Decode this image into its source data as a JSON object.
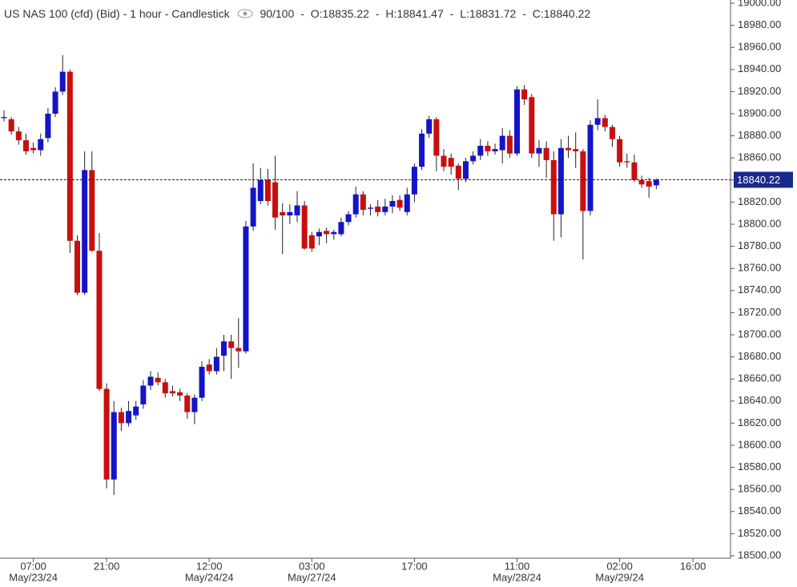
{
  "header": {
    "title": "US NAS 100 (cfd) (Bid) - 1 hour - Candlestick",
    "count": "90/100",
    "separator": "-",
    "readout_labels": [
      "O:",
      "H:",
      "L:",
      "C:"
    ]
  },
  "chart_data": {
    "type": "candlestick",
    "categories": [
      null,
      null,
      null,
      null,
      "07:00",
      null,
      null,
      null,
      null,
      null,
      null,
      null,
      null,
      null,
      "21:00",
      null,
      null,
      null,
      null,
      null,
      null,
      null,
      null,
      null,
      null,
      null,
      null,
      null,
      "12:00",
      null,
      null,
      null,
      null,
      null,
      null,
      null,
      null,
      null,
      null,
      null,
      null,
      null,
      "03:00",
      null,
      null,
      null,
      null,
      null,
      null,
      null,
      null,
      null,
      null,
      null,
      null,
      null,
      "17:00",
      null,
      null,
      null,
      null,
      null,
      null,
      null,
      null,
      null,
      null,
      null,
      null,
      null,
      "11:00",
      null,
      null,
      null,
      null,
      null,
      null,
      null,
      null,
      null,
      null,
      null,
      null,
      null,
      "02:00",
      null,
      null,
      null,
      null,
      null,
      null,
      null,
      null,
      null,
      "16:00",
      null,
      null,
      null,
      null,
      null
    ],
    "dates": [
      null,
      null,
      null,
      null,
      "May/23/24",
      null,
      null,
      null,
      null,
      null,
      null,
      null,
      null,
      null,
      null,
      null,
      null,
      null,
      null,
      null,
      null,
      null,
      null,
      null,
      null,
      null,
      null,
      null,
      "May/24/24",
      null,
      null,
      null,
      null,
      null,
      null,
      null,
      null,
      null,
      null,
      null,
      null,
      null,
      "May/27/24",
      null,
      null,
      null,
      null,
      null,
      null,
      null,
      null,
      null,
      null,
      null,
      null,
      null,
      null,
      null,
      null,
      null,
      null,
      null,
      null,
      null,
      null,
      null,
      null,
      null,
      null,
      null,
      "May/28/24",
      null,
      null,
      null,
      null,
      null,
      null,
      null,
      null,
      null,
      null,
      null,
      null,
      null,
      "May/29/24",
      null,
      null,
      null,
      null,
      null,
      null,
      null,
      null,
      null,
      null,
      null,
      null,
      null,
      null,
      null
    ],
    "open": [
      18896,
      18895,
      18884,
      18876,
      18869,
      18867,
      18878,
      18900,
      18920,
      18938,
      18785,
      18738,
      18849,
      18776,
      18651,
      18569,
      18630,
      18620,
      18627,
      18637,
      18654,
      18661,
      18657,
      18649,
      18648,
      18645,
      18630,
      18643,
      18673,
      18667,
      18681,
      18694,
      18688,
      18685,
      18798,
      18821,
      18840,
      18838,
      18811,
      18808,
      18808,
      18817,
      18790,
      18789,
      18794,
      18791,
      18791,
      18802,
      18809,
      18827,
      18814,
      18816,
      18811,
      18816,
      18822,
      18811,
      18827,
      18852,
      18882,
      18895,
      18862,
      18860,
      18853,
      18841,
      18857,
      18862,
      18871,
      18866,
      18867,
      18880,
      18864,
      18922,
      18915,
      18864,
      18869,
      18858,
      18809,
      18869,
      18868,
      18866,
      18812,
      18890,
      18896,
      18888,
      18877,
      18857,
      18856,
      18840,
      18839,
      18835.22,
      null,
      null,
      null,
      null,
      null,
      null,
      null,
      null,
      null,
      null
    ],
    "high": [
      18903,
      18897,
      18888,
      18882,
      18874,
      18882,
      18905,
      18924,
      18953,
      18940,
      18790,
      18866,
      18866,
      18792,
      18656,
      18640,
      18634,
      18640,
      18640,
      18659,
      18667,
      18666,
      18660,
      18654,
      18651,
      18647,
      18646,
      18676,
      18678,
      18688,
      18700,
      18700,
      18715,
      18803,
      18855,
      18851,
      18850,
      18862,
      18819,
      18818,
      18830,
      18821,
      18793,
      18796,
      18797,
      18795,
      18806,
      18812,
      18834,
      18830,
      18818,
      18822,
      18823,
      18826,
      18826,
      18833,
      18855,
      18886,
      18898,
      18897,
      18868,
      18864,
      18855,
      18860,
      18866,
      18877,
      18875,
      18873,
      18887,
      18885,
      18925,
      18926,
      18918,
      18876,
      18875,
      18866,
      18877,
      18880,
      18883,
      18868,
      18894,
      18913,
      18899,
      18890,
      18880,
      18864,
      18863,
      18844,
      18842,
      18841.47,
      null,
      null,
      null,
      null,
      null,
      null,
      null,
      null,
      null,
      null
    ],
    "low": [
      18893,
      18881,
      18872,
      18863,
      18864,
      18862,
      18874,
      18897,
      18917,
      18774,
      18736,
      18736,
      18775,
      18649,
      18561,
      18555,
      18613,
      18617,
      18623,
      18633,
      18650,
      18654,
      18643,
      18644,
      18640,
      18624,
      18619,
      18640,
      18664,
      18664,
      18667,
      18660,
      18670,
      18683,
      18794,
      18818,
      18817,
      18795,
      18773,
      18800,
      18802,
      18777,
      18775,
      18781,
      18783,
      18786,
      18789,
      18799,
      18806,
      18808,
      18808,
      18807,
      18808,
      18810,
      18812,
      18808,
      18820,
      18849,
      18878,
      18848,
      18848,
      18845,
      18831,
      18838,
      18854,
      18858,
      18862,
      18863,
      18855,
      18860,
      18862,
      18908,
      18860,
      18852,
      18842,
      18785,
      18788,
      18860,
      18851,
      18768,
      18808,
      18885,
      18884,
      18870,
      18852,
      18851,
      18838,
      18833,
      18824,
      18831.72,
      null,
      null,
      null,
      null,
      null,
      null,
      null,
      null,
      null,
      null
    ],
    "close": [
      18897,
      18884,
      18876,
      18866,
      18867,
      18877,
      18900,
      18920,
      18938,
      18785,
      18738,
      18849,
      18776,
      18651,
      18569,
      18630,
      18620,
      18631,
      18635,
      18654,
      18662,
      18657,
      18647,
      18647,
      18645,
      18630,
      18643,
      18671,
      18667,
      18680,
      18694,
      18688,
      18685,
      18798,
      18833,
      18840,
      18821,
      18806,
      18808,
      18811,
      18817,
      18778,
      18778,
      18793,
      18791,
      18793,
      18802,
      18809,
      18827,
      18813,
      18815,
      18811,
      18816,
      18821,
      18815,
      18827,
      18852,
      18882,
      18895,
      18862,
      18852,
      18852,
      18841,
      18857,
      18862,
      18871,
      18866,
      18868,
      18880,
      18864,
      18922,
      18913,
      18864,
      18869,
      18858,
      18809,
      18869,
      18867,
      18866,
      18812,
      18890,
      18896,
      18888,
      18877,
      18856,
      18856,
      18840,
      18836,
      18834,
      18840.22,
      null,
      null,
      null,
      null,
      null,
      null,
      null,
      null,
      null,
      null
    ],
    "up_color": "#1414c8",
    "down_color": "#c80f0f",
    "ylim": [
      18500,
      19000
    ],
    "yticks": [
      {
        "value": 18500,
        "label": "18500.00"
      },
      {
        "value": 18520,
        "label": "18520.00"
      },
      {
        "value": 18540,
        "label": "18540.00"
      },
      {
        "value": 18560,
        "label": "18560.00"
      },
      {
        "value": 18580,
        "label": "18580.00"
      },
      {
        "value": 18600,
        "label": "18600.00"
      },
      {
        "value": 18620,
        "label": "18620.00"
      },
      {
        "value": 18640,
        "label": "18640.00"
      },
      {
        "value": 18660,
        "label": "18660.00"
      },
      {
        "value": 18680,
        "label": "18680.00"
      },
      {
        "value": 18700,
        "label": "18700.00"
      },
      {
        "value": 18720,
        "label": "18720.00"
      },
      {
        "value": 18740,
        "label": "18740.00"
      },
      {
        "value": 18760,
        "label": "18760.00"
      },
      {
        "value": 18780,
        "label": "18780.00"
      },
      {
        "value": 18800,
        "label": "18800.00"
      },
      {
        "value": 18820,
        "label": "18820.00"
      },
      {
        "value": 18840,
        "label": "18840.00"
      },
      {
        "value": 18860,
        "label": "18860.00"
      },
      {
        "value": 18880,
        "label": "18880.00"
      },
      {
        "value": 18900,
        "label": "18900.00"
      },
      {
        "value": 18920,
        "label": "18920.00"
      },
      {
        "value": 18940,
        "label": "18940.00"
      },
      {
        "value": 18960,
        "label": "18960.00"
      },
      {
        "value": 18980,
        "label": "18980.00"
      },
      {
        "value": 19000,
        "label": "19000.00"
      }
    ],
    "grid": false
  }
}
